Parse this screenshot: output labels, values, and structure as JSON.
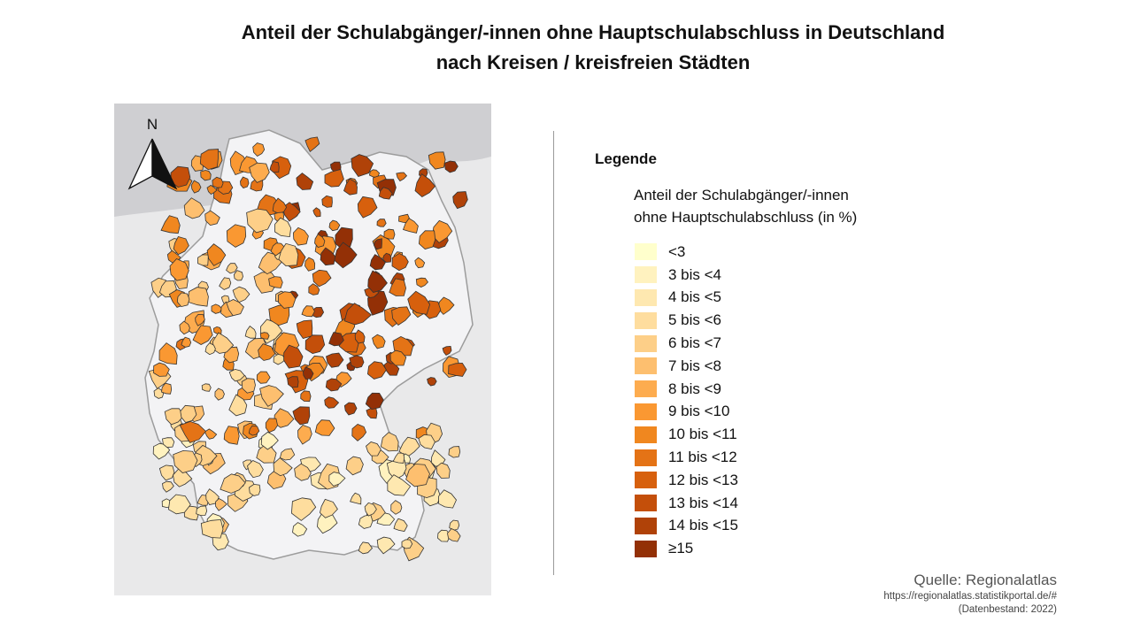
{
  "title": {
    "line1": "Anteil der Schulabgänger/-innen ohne Hauptschulabschluss in Deutschland",
    "line2": "nach Kreisen / kreisfreien Städten"
  },
  "map": {
    "north_label": "N",
    "icons": [
      "north-arrow-icon"
    ],
    "colors": {
      "sea": "#cfcfd2",
      "land": "#e9e9ea",
      "germany_fill": "#f3f3f5",
      "border": "#333333"
    }
  },
  "legend": {
    "heading": "Legende",
    "subtitle_line1": "Anteil der Schulabgänger/-innen",
    "subtitle_line2": "ohne Hauptschulabschluss  (in %)",
    "classes": [
      {
        "label": "<3",
        "color": "#ffffcc"
      },
      {
        "label": "3 bis <4",
        "color": "#fff2bf"
      },
      {
        "label": "4 bis <5",
        "color": "#fee8b0"
      },
      {
        "label": "5 bis <6",
        "color": "#fedd9e"
      },
      {
        "label": "6 bis <7",
        "color": "#fdcf88"
      },
      {
        "label": "7 bis <8",
        "color": "#fdbf6f"
      },
      {
        "label": "8 bis <9",
        "color": "#fdac4f"
      },
      {
        "label": "9 bis <10",
        "color": "#fa9832"
      },
      {
        "label": "10 bis <11",
        "color": "#f0871f"
      },
      {
        "label": "11 bis <12",
        "color": "#e47316"
      },
      {
        "label": "12 bis <13",
        "color": "#d7600d"
      },
      {
        "label": "13 bis <14",
        "color": "#c44f0a"
      },
      {
        "label": "14 bis <15",
        "color": "#b04208"
      },
      {
        "label": "≥15",
        "color": "#933006"
      }
    ]
  },
  "source": {
    "label": "Quelle: Regionalatlas",
    "url": "https://regionalatlas.statistikportal.de/#",
    "date": "(Datenbestand: 2022)"
  }
}
